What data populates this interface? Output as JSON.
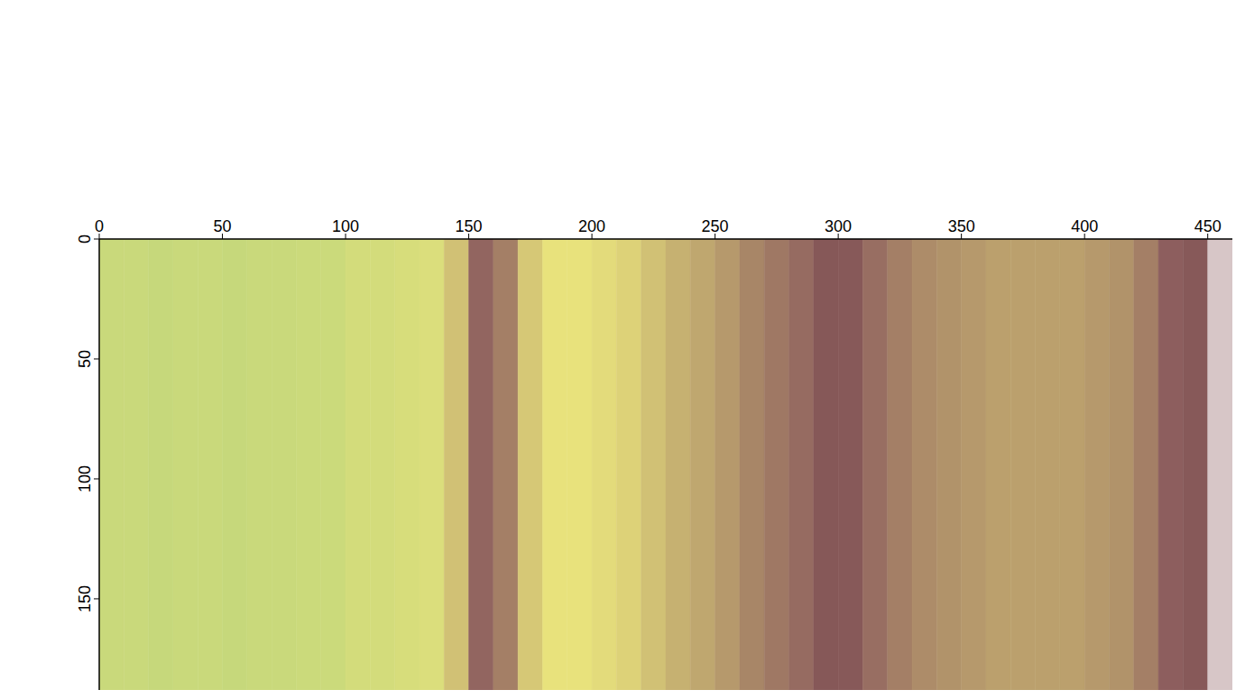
{
  "chart_data": {
    "type": "heatmap",
    "bins": [
      0,
      10,
      20,
      30,
      40,
      50,
      60,
      70,
      80,
      90,
      100,
      110,
      120,
      130,
      140,
      150,
      160,
      170,
      180,
      190,
      200,
      210,
      220,
      230,
      240,
      250,
      260,
      270,
      280,
      290,
      300,
      310,
      320,
      330,
      340,
      350,
      360,
      370,
      380,
      390,
      400,
      410,
      420,
      430,
      440,
      450,
      460
    ],
    "values": [
      0.15,
      0.15,
      0.14,
      0.15,
      0.15,
      0.14,
      0.15,
      0.15,
      0.16,
      0.16,
      0.2,
      0.2,
      0.22,
      0.24,
      0.4,
      0.68,
      0.6,
      0.38,
      0.3,
      0.3,
      0.32,
      0.35,
      0.4,
      0.45,
      0.48,
      0.52,
      0.58,
      0.62,
      0.66,
      0.85,
      0.82,
      0.65,
      0.6,
      0.56,
      0.54,
      0.52,
      0.5,
      0.5,
      0.5,
      0.5,
      0.52,
      0.54,
      0.6,
      0.7,
      0.82,
      0.96
    ],
    "xlim": [
      0,
      460
    ],
    "xticks": [
      0,
      50,
      100,
      150,
      200,
      250,
      300,
      350,
      400,
      450
    ],
    "ylim": [
      0,
      188
    ],
    "yticks": [
      0,
      50,
      100,
      150
    ]
  }
}
